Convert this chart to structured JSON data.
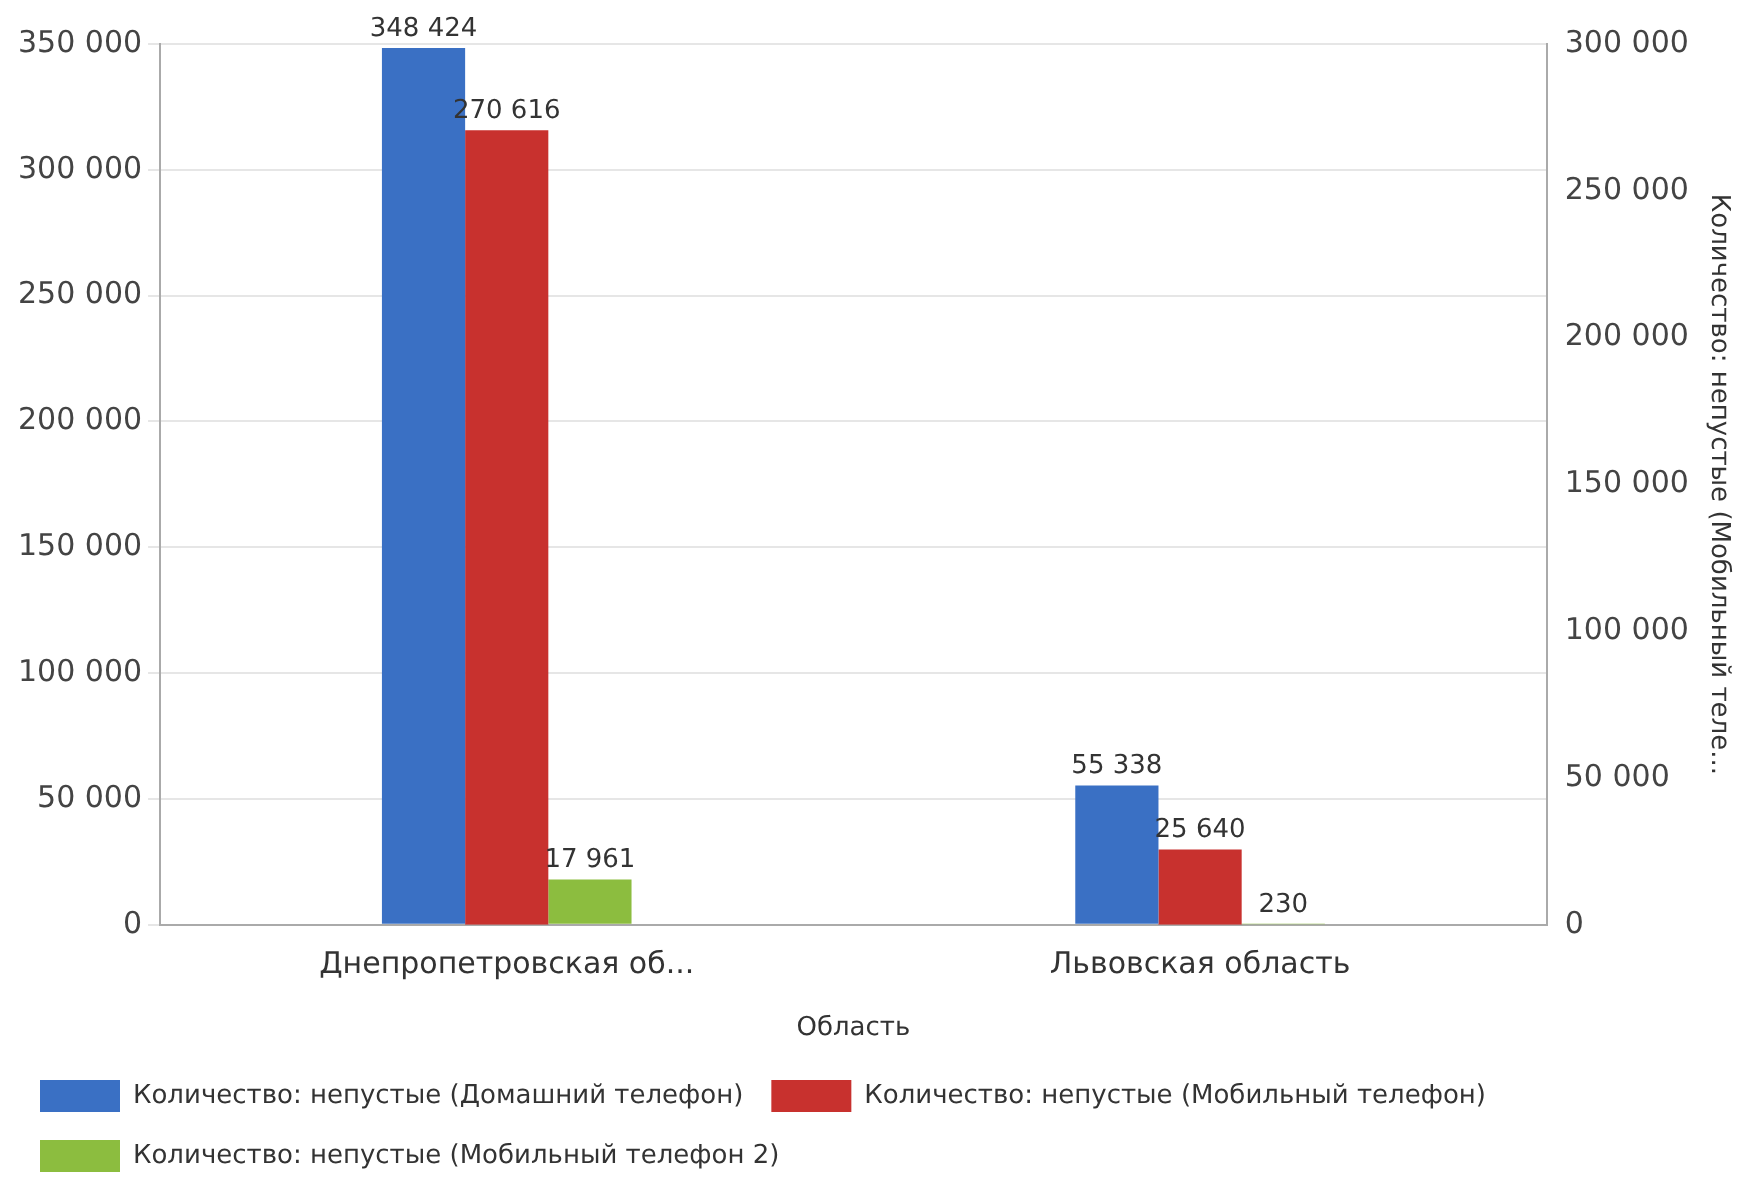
{
  "chart_data": {
    "type": "bar",
    "xlabel": "Область",
    "y2label": "Количество: непустые (Мобильный теле...",
    "categories": [
      "Днепропетровская об...",
      "Львовская область"
    ],
    "series": [
      {
        "name": "Количество: непустые (Домашний телефон)",
        "color": "#3a70c4",
        "values": [
          348424,
          55338
        ],
        "value_labels": [
          "348 424",
          "55 338"
        ]
      },
      {
        "name": "Количество: непустые (Мобильный телефон)",
        "color": "#c8312e",
        "values": [
          270616,
          25640
        ],
        "axis": "y2",
        "value_labels": [
          "270 616",
          "25 640"
        ]
      },
      {
        "name": "Количество: непустые (Мобильный телефон 2)",
        "color": "#8cbd3f",
        "values": [
          17961,
          230
        ],
        "value_labels": [
          "17 961",
          "230"
        ]
      }
    ],
    "ylim": [
      0,
      350000
    ],
    "yticks": [
      0,
      {
        "value": 50000,
        "label": "50 000"
      },
      {
        "value": 100000,
        "label": "100 000"
      },
      {
        "value": 150000,
        "label": "150 000"
      },
      {
        "value": 200000,
        "label": "200 000"
      },
      {
        "value": 250000,
        "label": "250 000"
      },
      {
        "value": 300000,
        "label": "300 000"
      },
      {
        "value": 350000,
        "label": "350 000"
      }
    ],
    "y2lim": [
      0,
      300000
    ],
    "y2ticks": [
      0,
      {
        "value": 50000,
        "label": "50 000"
      },
      {
        "value": 100000,
        "label": "100 000"
      },
      {
        "value": 150000,
        "label": "150 000"
      },
      {
        "value": 200000,
        "label": "200 000"
      },
      {
        "value": 250000,
        "label": "250 000"
      },
      {
        "value": 300000,
        "label": "300 000"
      }
    ],
    "grid": "y",
    "legend": "bottom"
  }
}
